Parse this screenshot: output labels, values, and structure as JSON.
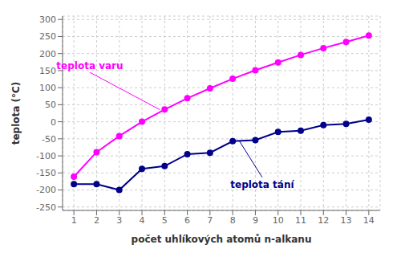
{
  "chart_data": {
    "type": "line",
    "x_label": "počet uhlíkových atomů n-alkanu",
    "y_label": "teplota (°C)",
    "x": [
      1,
      2,
      3,
      4,
      5,
      6,
      7,
      8,
      9,
      10,
      11,
      12,
      13,
      14
    ],
    "series": [
      {
        "name": "teplota varu",
        "color": "#ff00ff",
        "marker": "circle",
        "values": [
          -161,
          -89,
          -42,
          0,
          36,
          69,
          98,
          126,
          151,
          174,
          196,
          216,
          234,
          253
        ],
        "annotation": {
          "x": 4.8,
          "y": 35,
          "text_x": 1.7,
          "text_y": 145
        }
      },
      {
        "name": "teplota tání",
        "color": "#00008b",
        "marker": "circle",
        "values": [
          -183,
          -183,
          -200,
          -138,
          -130,
          -95,
          -91,
          -57,
          -54,
          -30,
          -26,
          -10,
          -6,
          6
        ],
        "annotation": {
          "x": 8.3,
          "y": -57,
          "text_x": 9.3,
          "text_y": -163
        }
      }
    ],
    "xlim": [
      0.5,
      14.5
    ],
    "ylim": [
      -260,
      310
    ],
    "xticks": [
      1,
      2,
      3,
      4,
      5,
      6,
      7,
      8,
      9,
      10,
      11,
      12,
      13,
      14
    ],
    "yticks": [
      -250,
      -200,
      -150,
      -100,
      -50,
      0,
      50,
      100,
      150,
      200,
      250,
      300
    ],
    "grid": true
  }
}
